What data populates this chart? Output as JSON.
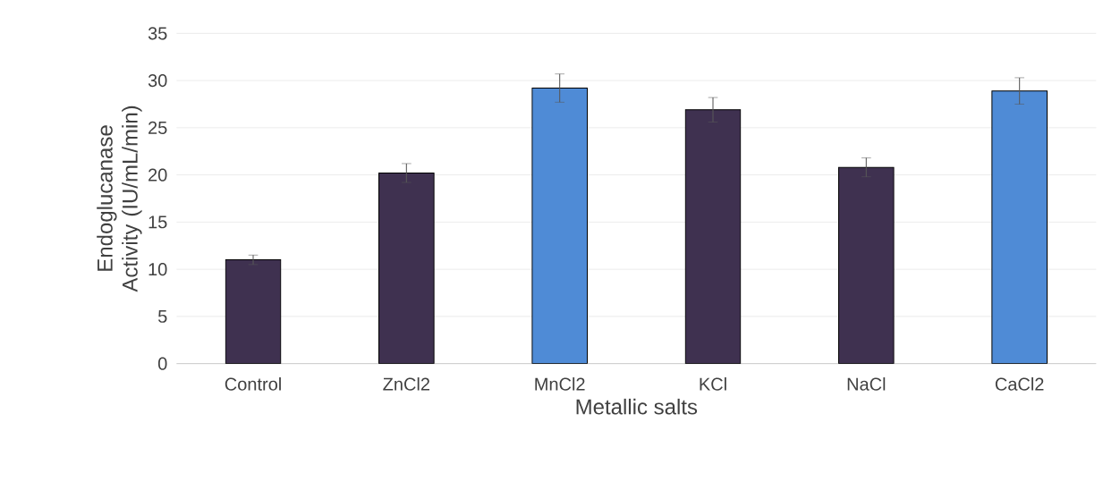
{
  "chart_data": {
    "type": "bar",
    "xlabel": "Metallic salts",
    "ylabel": "Endoglucanase Activity (IU/mL/min)",
    "categories": [
      "Control",
      "ZnCl2",
      "MnCl2",
      "KCl",
      "NaCl",
      "CaCl2"
    ],
    "values": [
      11.0,
      20.2,
      29.2,
      26.9,
      20.8,
      28.9
    ],
    "errors": [
      0.5,
      1.0,
      1.5,
      1.3,
      1.0,
      1.4
    ],
    "colors": [
      "#3f3150",
      "#3f3150",
      "#4f8bd6",
      "#3f3150",
      "#3f3150",
      "#4f8bd6"
    ],
    "ylim": [
      0,
      35
    ],
    "yticks": [
      0,
      5,
      10,
      15,
      20,
      25,
      30,
      35
    ],
    "grid": "y"
  }
}
